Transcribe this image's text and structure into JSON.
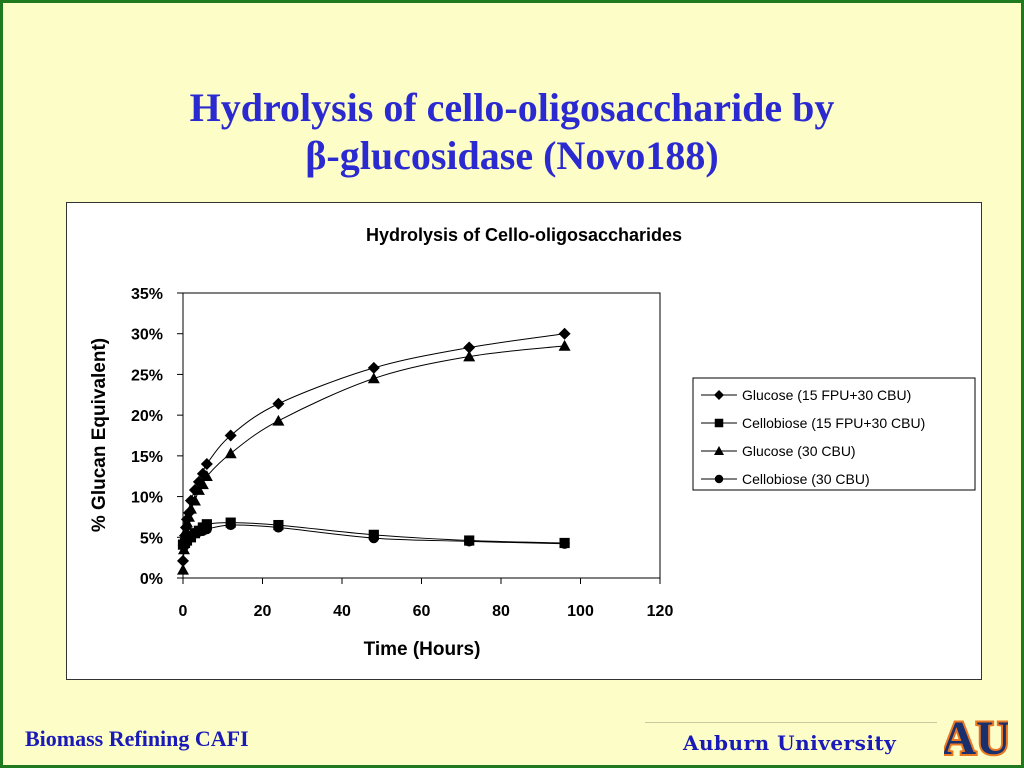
{
  "slide": {
    "title_line1": "Hydrolysis of cello-oligosaccharide by",
    "title_line2": "β-glucosidase (Novo188)",
    "footer_left": "Biomass Refining CAFI",
    "footer_right": "Auburn University",
    "logo_text": "AU"
  },
  "colors": {
    "title": "#2a2ad0",
    "background": "#fdfdc8",
    "frame": "#1f7a1f",
    "footer_text": "#1a1ab8",
    "logo_blue": "#1a2f6e",
    "logo_orange": "#e87722"
  },
  "chart_data": {
    "type": "line",
    "title": "Hydrolysis of Cello-oligosaccharides",
    "xlabel": "Time (Hours)",
    "ylabel": "% Glucan Equivalent)",
    "xlim": [
      0,
      120
    ],
    "ylim": [
      0,
      0.35
    ],
    "xticks": [
      "0",
      "20",
      "40",
      "60",
      "80",
      "100",
      "120"
    ],
    "yticks": [
      "0%",
      "5%",
      "10%",
      "15%",
      "20%",
      "25%",
      "30%",
      "35%"
    ],
    "grid": false,
    "legend_position": "right",
    "series": [
      {
        "name": "Glucose (15 FPU+30 CBU)",
        "marker": "diamond",
        "x": [
          0,
          0.25,
          0.5,
          0.75,
          1,
          1.5,
          2,
          3,
          4,
          5,
          6,
          12,
          24,
          48,
          72,
          96
        ],
        "y": [
          0.021,
          0.038,
          0.052,
          0.062,
          0.072,
          0.08,
          0.095,
          0.108,
          0.118,
          0.128,
          0.14,
          0.175,
          0.214,
          0.258,
          0.283,
          0.3
        ]
      },
      {
        "name": "Cellobiose (15 FPU+30 CBU)",
        "marker": "square",
        "x": [
          0,
          0.5,
          1,
          2,
          3,
          4,
          5,
          6,
          12,
          24,
          48,
          72,
          96
        ],
        "y": [
          0.041,
          0.043,
          0.046,
          0.05,
          0.055,
          0.058,
          0.062,
          0.066,
          0.068,
          0.065,
          0.053,
          0.046,
          0.043
        ]
      },
      {
        "name": "Glucose (30 CBU)",
        "marker": "triangle",
        "x": [
          0,
          0.25,
          0.5,
          0.75,
          1,
          1.5,
          2,
          3,
          4,
          5,
          6,
          12,
          24,
          48,
          72,
          96
        ],
        "y": [
          0.01,
          0.035,
          0.048,
          0.058,
          0.068,
          0.075,
          0.085,
          0.095,
          0.108,
          0.115,
          0.125,
          0.153,
          0.193,
          0.245,
          0.272,
          0.285
        ]
      },
      {
        "name": "Cellobiose (30 CBU)",
        "marker": "circle",
        "x": [
          0,
          0.5,
          1,
          2,
          3,
          4,
          5,
          6,
          12,
          24,
          48,
          72,
          96
        ],
        "y": [
          0.04,
          0.043,
          0.047,
          0.052,
          0.055,
          0.057,
          0.058,
          0.06,
          0.065,
          0.062,
          0.049,
          0.045,
          0.042
        ]
      }
    ]
  }
}
